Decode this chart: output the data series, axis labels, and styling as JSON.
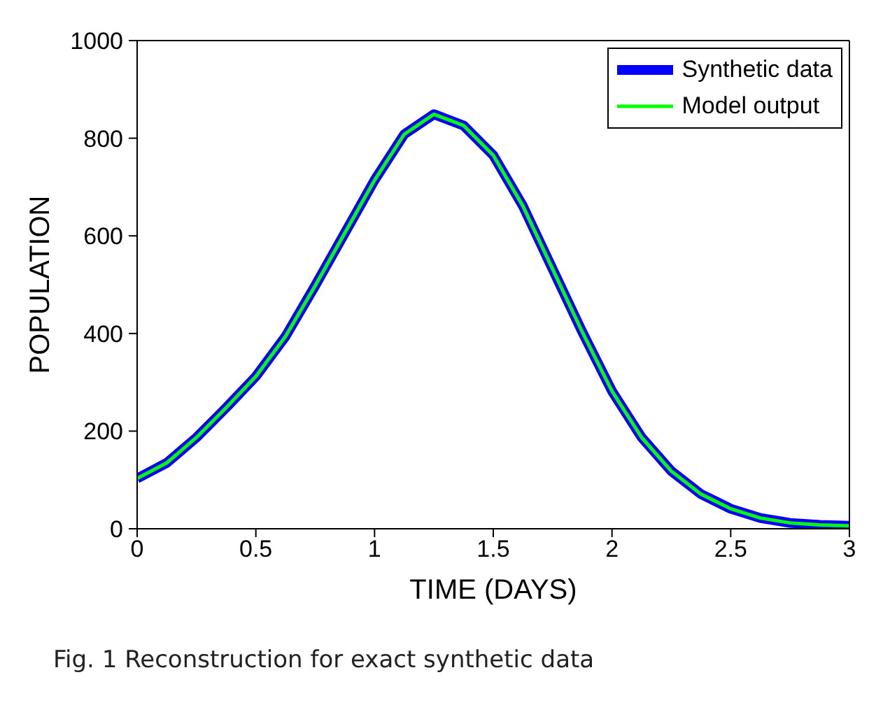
{
  "chart_data": {
    "type": "line",
    "xlabel": "TIME (DAYS)",
    "ylabel": "POPULATION",
    "annotations": [
      "Fig. 1 Reconstruction for exact synthetic data"
    ],
    "x": [
      0,
      0.125,
      0.25,
      0.375,
      0.5,
      0.625,
      0.75,
      0.875,
      1,
      1.125,
      1.25,
      1.375,
      1.5,
      1.625,
      1.75,
      1.875,
      2,
      2.125,
      2.25,
      2.375,
      2.5,
      2.625,
      2.75,
      2.875,
      3
    ],
    "series": [
      {
        "name": "Synthetic data",
        "color": "#0000ff",
        "values": [
          103,
          135,
          187,
          248,
          312,
          394,
          498,
          606,
          714,
          808,
          849,
          826,
          765,
          661,
          532,
          403,
          282,
          187,
          118,
          71,
          41,
          22,
          12,
          8,
          6
        ]
      },
      {
        "name": "Model output",
        "color": "#00ff00",
        "values": [
          103,
          135,
          187,
          248,
          312,
          394,
          498,
          606,
          714,
          808,
          849,
          826,
          765,
          661,
          532,
          403,
          282,
          187,
          118,
          71,
          41,
          22,
          12,
          8,
          6
        ]
      }
    ],
    "xlim": [
      0,
      3
    ],
    "xticks": [
      0,
      0.5,
      1,
      1.5,
      2,
      2.5,
      3
    ],
    "ylim": [
      0,
      1000
    ],
    "yticks": [
      0,
      200,
      400,
      600,
      800,
      1000
    ],
    "grid": false,
    "legend": "top right",
    "marker": "none",
    "line_style": "solid"
  }
}
